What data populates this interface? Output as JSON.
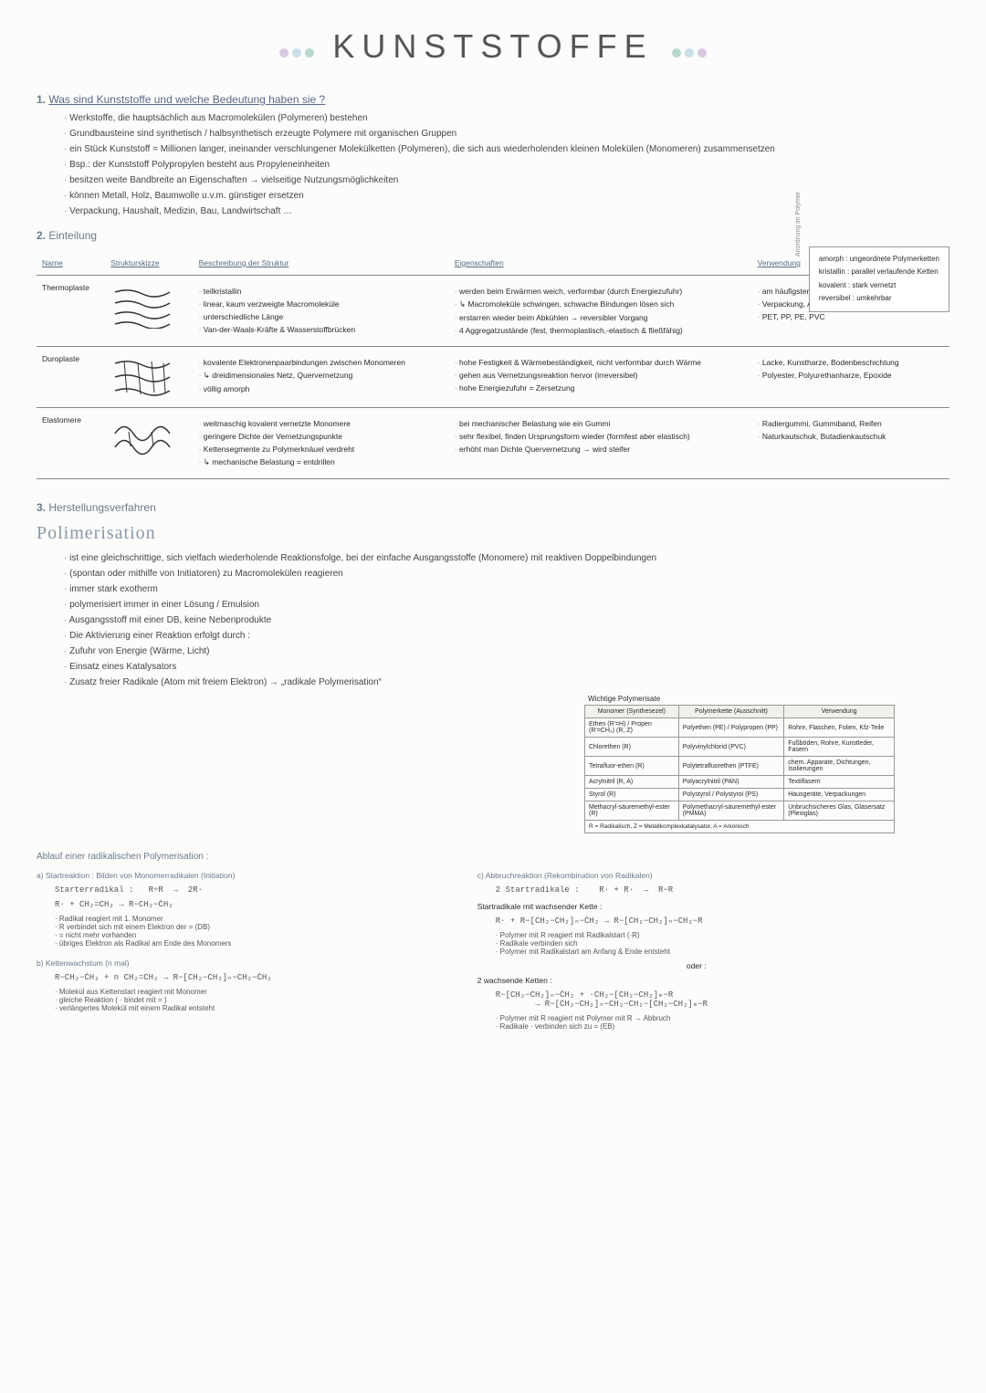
{
  "title": "KUNSTSTOFFE",
  "colors": {
    "accent": "#6a7a8a",
    "text": "#2a2a2a",
    "pale1": "#c8e0e8",
    "pale2": "#d8c8e0",
    "pale3": "#b8d8d0"
  },
  "s1": {
    "num": "1.",
    "q": "Was sind Kunststoffe und welche Bedeutung haben sie ?",
    "lines": [
      "Werkstoffe, die hauptsächlich aus Macromolekülen (Polymeren) bestehen",
      "Grundbausteine sind synthetisch / halbsynthetisch erzeugte Polymere mit organischen Gruppen",
      "ein Stück Kunststoff = Millionen langer, ineinander verschlungener Molekülketten (Polymeren), die sich aus wiederholenden kleinen Molekülen (Monomeren) zusammensetzen",
      "Bsp.: der Kunststoff Polypropylen besteht aus Propyleneinheiten",
      "besitzen weite Bandbreite an Eigenschaften → vielseitige Nutzungsmöglichkeiten",
      "können Metall, Holz, Baumwolle u.v.m. günstiger ersetzen",
      "Verpackung, Haushalt, Medizin, Bau, Landwirtschaft …"
    ]
  },
  "sidebox": {
    "vlabel": "Anordnung im Polymer",
    "rows": [
      "amorph : ungeordnete Polymerketten",
      "kristallin : parallel verlaufende Ketten",
      "kovalent : stark vernetzt",
      "reversibel : umkehrbar"
    ]
  },
  "s2": {
    "num": "2.",
    "head": "Einteilung",
    "th": [
      "Name",
      "Strukturskizze",
      "Beschreibung der Struktur",
      "Eigenschaften",
      "Verwendung"
    ],
    "rows": [
      {
        "name": "Thermoplaste",
        "sketch": "lines",
        "desc": [
          "teilkristallin",
          "linear, kaum verzweigte Macromoleküle",
          "unterschiedliche Länge",
          "Van-der-Waals-Kräfte & Wasserstoffbrücken"
        ],
        "eig": [
          "werden beim Erwärmen weich, verformbar (durch Energiezufuhr)",
          "↳ Macromoleküle schwingen, schwache Bindungen lösen sich",
          "erstarren wieder beim Abkühlen → reversibler Vorgang",
          "4 Aggregatzustände (fest, thermoplastisch,-elastisch & fließfähig)"
        ],
        "verw": [
          "am häufigsten verwendet",
          "Verpackung, Autoindustrie, Bauindustrie etc.",
          "PET, PP, PE, PVC"
        ]
      },
      {
        "name": "Duroplaste",
        "sketch": "mesh",
        "desc": [
          "kovalente Elektronenpaarbindungen zwischen Monomeren",
          "↳ dreidimensionales Netz, Quervernetzung",
          "völlig amorph"
        ],
        "eig": [
          "hohe Festigkeit & Wärmebeständigkeit, nicht verformbar durch Wärme",
          "gehen aus Vernetzungsreaktion hervor (irreversibel)",
          "hohe Energiezufuhr = Zersetzung"
        ],
        "verw": [
          "Lacke, Kunstharze, Bodenbeschichtung",
          "Polyester, Polyurethanharze, Epoxide"
        ]
      },
      {
        "name": "Elastomere",
        "sketch": "loose",
        "desc": [
          "weitmaschig kovalent vernetzte Monomere",
          "geringere Dichte der Vernetzungspunkte",
          "Kettensegmente zu Polymerknäuel verdreht",
          "↳ mechanische Belastung = entdrillen"
        ],
        "eig": [
          "bei mechanischer Belastung wie ein Gummi",
          "sehr flexibel, finden Ursprungsform wieder (formfest aber elastisch)",
          "erhöht man Dichte Quervernetzung → wird steifer"
        ],
        "verw": [
          "Radiergummi, Gummiband, Reifen",
          "Naturkautschuk, Butadienkautschuk"
        ]
      }
    ]
  },
  "s3": {
    "num": "3.",
    "head": "Herstellungsverfahren",
    "title": "Polimerisation",
    "intro": [
      "ist eine gleichschrittige, sich vielfach wiederholende Reaktionsfolge, bei der einfache Ausgangsstoffe (Monomere) mit reaktiven Doppelbindungen",
      "(spontan oder mithilfe von Initiatoren) zu Macromolekülen reagieren",
      "immer stark exotherm",
      "polymerisiert immer in einer Lösung / Emulsion",
      "Ausgangsstoff mit einer DB, keine Nebenprodukte",
      "Die Aktivierung einer Reaktion erfolgt durch :",
      "Zufuhr von Energie (Wärme, Licht)",
      "Einsatz eines Katalysators",
      "Zusatz freier Radikale (Atom mit freiem Elektron) → „radikale Polymerisation“"
    ],
    "polytab": {
      "caption": "Wichtige Polymerisate",
      "th": [
        "Monomer (Synthesezel)",
        "Polymerkette (Ausschnitt)",
        "Verwendung"
      ],
      "rows": [
        [
          "Ethen (R'=H) / Propen (R'=CH₃) (R, Z)",
          "Polyethen (PE) / Polypropen (PP)",
          "Rohre, Flaschen, Folien, Kfz-Teile"
        ],
        [
          "Chlorethen (R)",
          "Polyvinylchlorid (PVC)",
          "Fußböden, Rohre, Kunstleder, Fasern"
        ],
        [
          "Tetrafluor-ethen (R)",
          "Polytetrafluorethen (PTFE)",
          "chem. Apparate, Dichtungen, Isolierungen"
        ],
        [
          "Acrylnitril (R, A)",
          "Polyacrylnitril (PAN)",
          "Textilfasern"
        ],
        [
          "Styrol (R)",
          "Polystyrol / Polystyroi (PS)",
          "Hausgeräte, Verpackungen"
        ],
        [
          "Methacryl-säuremethyl-ester (R)",
          "Polymethacryl-säuremethyl-ester (PMMA)",
          "Unbruchsicheres Glas, Glasersatz (Plexiglas)"
        ]
      ],
      "foot": "R = Radikalisch, Z = Metallkomplexkatalysator, A = Anionisch"
    },
    "ablauf_head": "Ablauf einer radikalischen Polymerisation :",
    "left": {
      "a_head": "a) Startreaktion : Bilden von Monomerradikalen (Initiation)",
      "a_eq": "Starterradikal :   R÷R  →  2R·",
      "a_rxn": "R· + CH₂=CH₂ → R−CH₂−ĊH₂",
      "a_desc": [
        "Radikal reagiert mit 1. Monomer",
        "R verbindet sich mit einem Elektron der = (DB)",
        "= nicht mehr vorhanden",
        "übriges Elektron als Radikal am Ende des Monomers"
      ],
      "b_head": "b) Kettenwachstum (n mal)",
      "b_rxn": "R−CH₂−ĊH₂ + n CH₂=CH₂ → R−[CH₂−CH₂]ₙ−CH₂−ĊH₂",
      "b_desc": [
        "Molekül aus Kettenstart reagiert mit Monomer",
        "gleiche Reaktion ( · bindet mit = )",
        "verlängertes Molekül mit einem Radikal entsteht"
      ]
    },
    "right": {
      "c_head": "c) Abbruchreaktion (Rekombination von Radikalen)",
      "c1_head": "2 Startradikale :    R· + R·  →  R−R",
      "c2_head": "Startradikale mit wachsender Kette :",
      "c2_rxn": "R· + R−[CH₂−CH₂]ₙ−ĊH₂ → R−[CH₂−CH₂]ₙ−CH₂−R",
      "c2_desc": [
        "Polymer mit R reagiert mit Radikalstart (·R)",
        "Radikale verbinden sich",
        "Polymer mit Radikalstart am Anfang & Ende entsteht"
      ],
      "or": "oder :",
      "c3_head": "2 wachsende Ketten :",
      "c3_rxn": "R−[CH₂−CH₂]ₙ−ĊH₂ + ·CH₂−[CH₂−CH₂]ₘ−R\n        → R−[CH₂−CH₂]ₙ−CH₂−CH₂−[CH₂−CH₂]ₘ−R",
      "c3_desc": [
        "Polymer mit R reagiert mit Polymer mit R → Abbruch",
        "Radikale · verbinden sich zu = (EB)"
      ]
    }
  }
}
